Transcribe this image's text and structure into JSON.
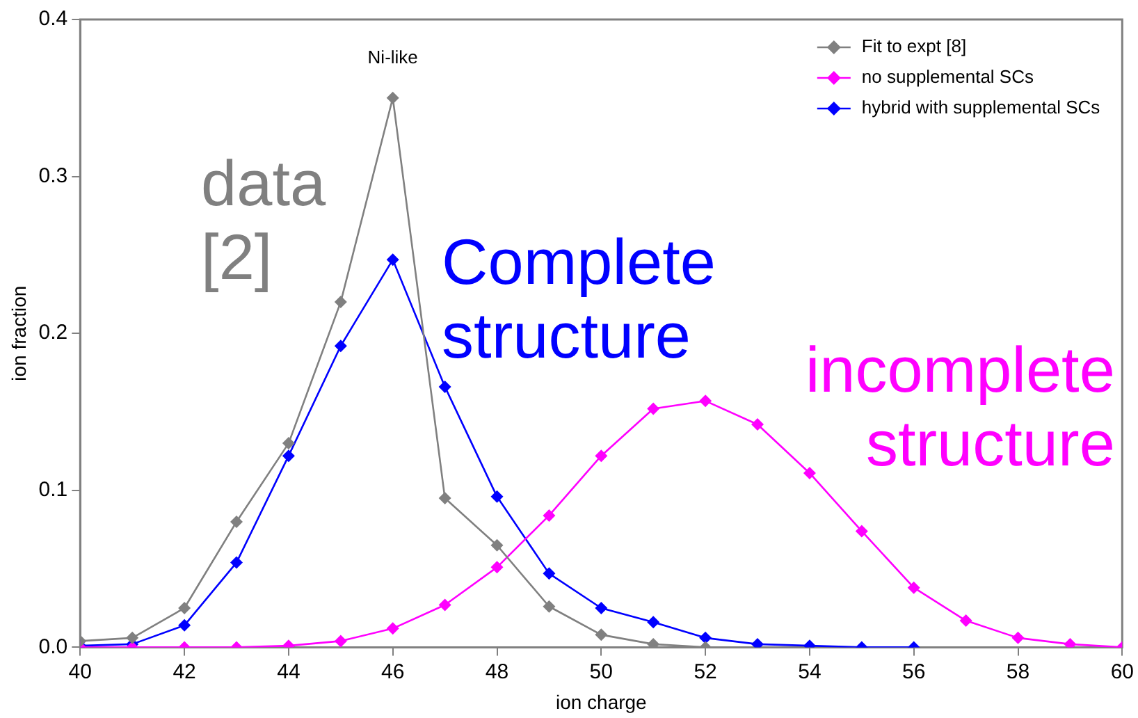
{
  "chart_data": {
    "type": "line",
    "xlabel": "ion charge",
    "ylabel": "ion fraction",
    "xlim": [
      40,
      60
    ],
    "xticks": [
      40,
      42,
      44,
      46,
      48,
      50,
      52,
      54,
      56,
      58,
      60
    ],
    "ylim": [
      0,
      0.4
    ],
    "yticks": [
      {
        "value": 0,
        "label": "0.0"
      },
      0.1,
      0.2,
      0.3,
      0.4
    ],
    "grid": false,
    "legend": "top right",
    "marker": "diamond",
    "line_style": "solid",
    "series": [
      {
        "name": "Fit to expt [8]",
        "color": "#808080",
        "x": [
          40,
          41,
          42,
          43,
          44,
          45,
          46,
          47,
          48,
          49,
          50,
          51,
          52
        ],
        "values": [
          0.004,
          0.006,
          0.025,
          0.08,
          0.13,
          0.22,
          0.35,
          0.095,
          0.065,
          0.026,
          0.008,
          0.002,
          0.0
        ]
      },
      {
        "name": "no supplemental SCs",
        "color": "#ff00ff",
        "x": [
          40,
          41,
          42,
          43,
          44,
          45,
          46,
          47,
          48,
          49,
          50,
          51,
          52,
          53,
          54,
          55,
          56,
          57,
          58,
          59,
          60
        ],
        "values": [
          0,
          0,
          0,
          0,
          0.001,
          0.004,
          0.012,
          0.027,
          0.051,
          0.084,
          0.122,
          0.152,
          0.157,
          0.142,
          0.111,
          0.074,
          0.038,
          0.017,
          0.006,
          0.002,
          0.0
        ]
      },
      {
        "name": "hybrid with supplemental SCs",
        "color": "#0000ff",
        "x": [
          40,
          41,
          42,
          43,
          44,
          45,
          46,
          47,
          48,
          49,
          50,
          51,
          52,
          53,
          54,
          55,
          56
        ],
        "values": [
          0.001,
          0.002,
          0.014,
          0.054,
          0.122,
          0.192,
          0.247,
          0.166,
          0.096,
          0.047,
          0.025,
          0.016,
          0.006,
          0.002,
          0.001,
          0.0,
          0.0
        ]
      }
    ],
    "annotations": [
      {
        "text": "Ni-like",
        "x": 46,
        "y": 0.35
      },
      "data\n[2]",
      "Complete\nstructure",
      "incomplete\nstructure"
    ]
  }
}
